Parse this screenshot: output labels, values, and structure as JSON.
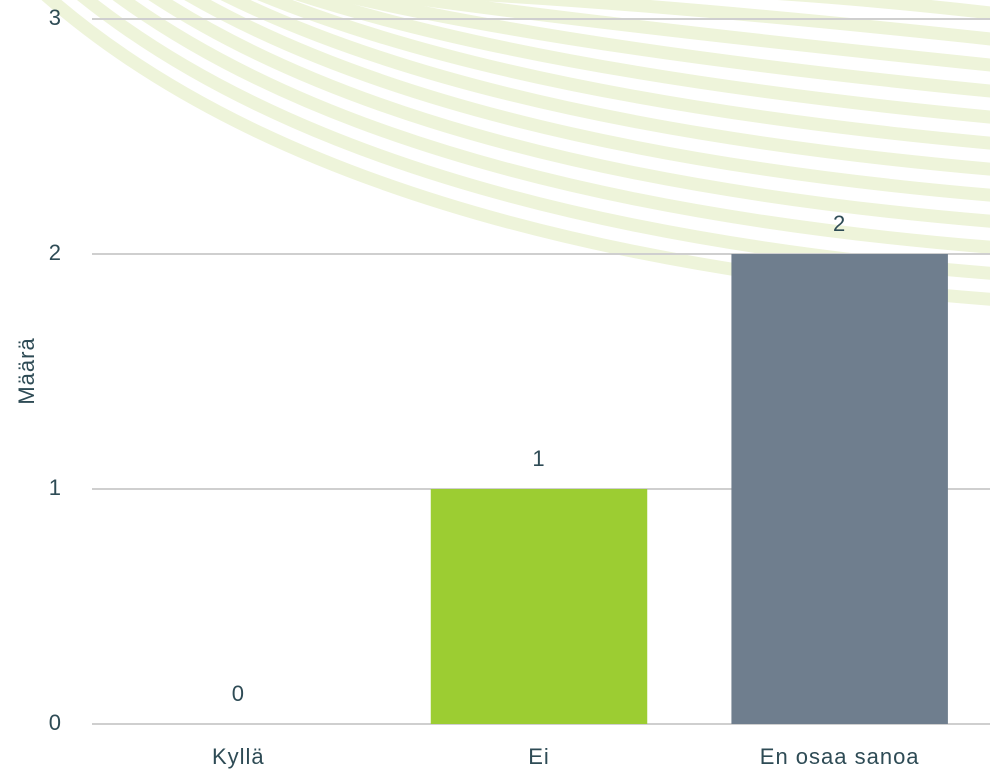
{
  "chart_data": {
    "type": "bar",
    "y_label": "Määrä",
    "categories": [
      "Kyllä",
      "Ei",
      "En osaa sanoa"
    ],
    "values": [
      0,
      1,
      2
    ],
    "colors": [
      "#4f7f8f",
      "#9ccd32",
      "#6f7e8e"
    ],
    "ylim": [
      0,
      3
    ],
    "yticks": [
      0,
      1,
      2,
      3
    ],
    "grid": true,
    "data_labels": true
  }
}
